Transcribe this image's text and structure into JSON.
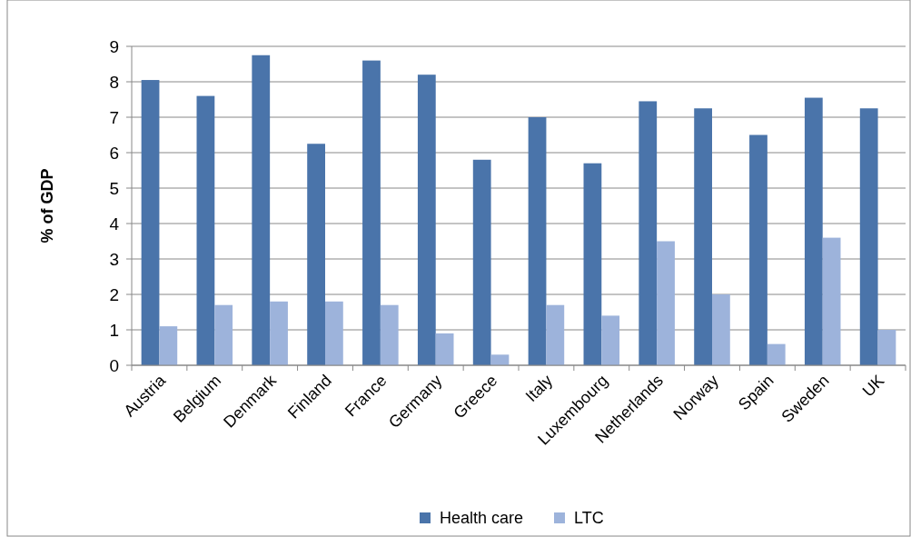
{
  "chart_data": {
    "type": "bar",
    "ylabel": "% of GDP",
    "categories": [
      "Austria",
      "Belgium",
      "Denmark",
      "Finland",
      "France",
      "Germany",
      "Greece",
      "Italy",
      "Luxembourg",
      "Netherlands",
      "Norway",
      "Spain",
      "Sweden",
      "UK"
    ],
    "series": [
      {
        "name": "Health care",
        "color": "#4a74aa",
        "values": [
          8.05,
          7.6,
          8.75,
          6.25,
          8.6,
          8.2,
          5.8,
          7.0,
          5.7,
          7.45,
          7.25,
          6.5,
          7.55,
          7.25
        ]
      },
      {
        "name": "LTC",
        "color": "#9db3db",
        "values": [
          1.1,
          1.7,
          1.8,
          1.8,
          1.7,
          0.9,
          0.3,
          1.7,
          1.4,
          3.5,
          2.0,
          0.6,
          3.6,
          1.0
        ]
      }
    ],
    "ylim": [
      0,
      9
    ],
    "yticks": [
      0,
      1,
      2,
      3,
      4,
      5,
      6,
      7,
      8,
      9
    ],
    "grid": "y",
    "legend": "bottom"
  }
}
